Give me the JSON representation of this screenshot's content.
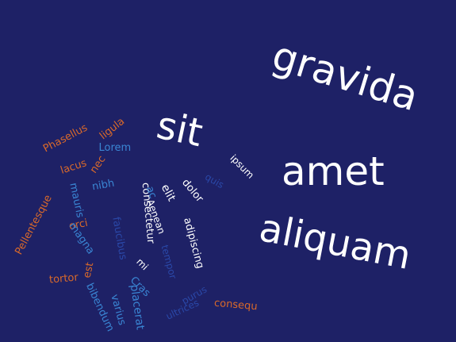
{
  "word_cloud": {
    "background_color": "#1e2166",
    "palette": {
      "white": "#ffffff",
      "orange": "#d9692a",
      "blue": "#3a86d4",
      "dark": "#2a48a8"
    },
    "words": [
      {
        "text": "gravida",
        "color": "white"
      },
      {
        "text": "sit",
        "color": "white"
      },
      {
        "text": "amet",
        "color": "white"
      },
      {
        "text": "aliquam",
        "color": "white"
      },
      {
        "text": "ipsum",
        "color": "white"
      },
      {
        "text": "elit",
        "color": "white"
      },
      {
        "text": "dolor",
        "color": "white"
      },
      {
        "text": "consectetur",
        "color": "white"
      },
      {
        "text": "Aenean",
        "color": "white"
      },
      {
        "text": "adipiscing",
        "color": "white"
      },
      {
        "text": "mi",
        "color": "white"
      },
      {
        "text": "Phasellus",
        "color": "orange"
      },
      {
        "text": "ligula",
        "color": "orange"
      },
      {
        "text": "lacus",
        "color": "orange"
      },
      {
        "text": "nec",
        "color": "orange"
      },
      {
        "text": "orci",
        "color": "orange"
      },
      {
        "text": "Pellentesque",
        "color": "orange"
      },
      {
        "text": "tortor",
        "color": "orange"
      },
      {
        "text": "est",
        "color": "orange"
      },
      {
        "text": "consequ",
        "color": "orange"
      },
      {
        "text": "Lorem",
        "color": "blue"
      },
      {
        "text": "nibh",
        "color": "blue"
      },
      {
        "text": "mauris",
        "color": "blue"
      },
      {
        "text": "magna",
        "color": "blue"
      },
      {
        "text": "ac",
        "color": "blue"
      },
      {
        "text": "bibendum",
        "color": "blue"
      },
      {
        "text": "Cras",
        "color": "blue"
      },
      {
        "text": "placerat",
        "color": "blue"
      },
      {
        "text": "varius",
        "color": "blue"
      },
      {
        "text": "faucibus",
        "color": "dark"
      },
      {
        "text": "tempor",
        "color": "dark"
      },
      {
        "text": "ultrices",
        "color": "dark"
      },
      {
        "text": "purus",
        "color": "dark"
      },
      {
        "text": "quis",
        "color": "dark"
      }
    ]
  }
}
